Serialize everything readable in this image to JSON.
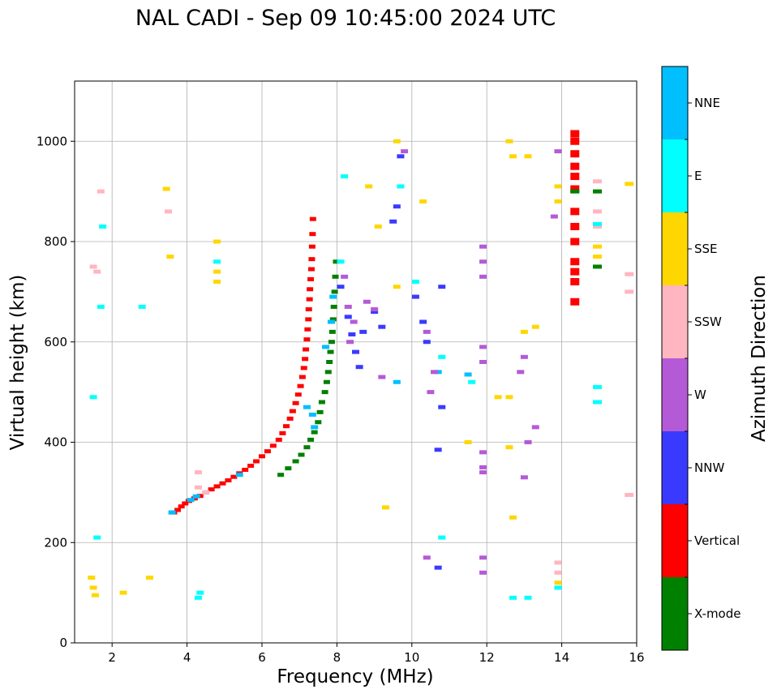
{
  "chart_data": {
    "type": "scatter",
    "title": "NAL CADI - Sep 09 10:45:00 2024 UTC",
    "xlabel": "Frequency (MHz)",
    "ylabel": "Virtual height (km)",
    "xlim": [
      1,
      16
    ],
    "ylim": [
      0,
      1120
    ],
    "xticks": [
      2,
      4,
      6,
      8,
      10,
      12,
      14,
      16
    ],
    "yticks": [
      0,
      200,
      400,
      600,
      800,
      1000
    ],
    "grid": true,
    "colorbar": {
      "label": "Azimuth Direction",
      "categories": [
        {
          "name": "X-mode",
          "color": "#008000"
        },
        {
          "name": "Vertical",
          "color": "#ff0000"
        },
        {
          "name": "NNW",
          "color": "#3a3aff"
        },
        {
          "name": "W",
          "color": "#b55ad6"
        },
        {
          "name": "SSW",
          "color": "#ffb6c1"
        },
        {
          "name": "SSE",
          "color": "#ffd700"
        },
        {
          "name": "E",
          "color": "#00ffff"
        },
        {
          "name": "NNE",
          "color": "#00bfff"
        }
      ]
    },
    "series": [
      {
        "name": "Vertical",
        "points": [
          [
            3.65,
            260
          ],
          [
            3.75,
            265
          ],
          [
            3.85,
            272
          ],
          [
            3.95,
            278
          ],
          [
            4.05,
            283
          ],
          [
            4.2,
            288
          ],
          [
            4.35,
            293
          ],
          [
            4.5,
            300
          ],
          [
            4.65,
            306
          ],
          [
            4.8,
            312
          ],
          [
            4.95,
            318
          ],
          [
            5.1,
            324
          ],
          [
            5.25,
            331
          ],
          [
            5.4,
            338
          ],
          [
            5.55,
            345
          ],
          [
            5.7,
            353
          ],
          [
            5.85,
            362
          ],
          [
            6.0,
            372
          ],
          [
            6.15,
            382
          ],
          [
            6.3,
            393
          ],
          [
            6.45,
            405
          ],
          [
            6.55,
            418
          ],
          [
            6.65,
            432
          ],
          [
            6.75,
            447
          ],
          [
            6.82,
            462
          ],
          [
            6.9,
            478
          ],
          [
            6.97,
            495
          ],
          [
            7.03,
            512
          ],
          [
            7.08,
            530
          ],
          [
            7.12,
            548
          ],
          [
            7.15,
            566
          ],
          [
            7.17,
            585
          ],
          [
            7.2,
            605
          ],
          [
            7.22,
            625
          ],
          [
            7.24,
            645
          ],
          [
            7.25,
            665
          ],
          [
            7.27,
            685
          ],
          [
            7.28,
            705
          ],
          [
            7.3,
            725
          ],
          [
            7.32,
            745
          ],
          [
            7.33,
            765
          ],
          [
            7.34,
            790
          ],
          [
            7.35,
            815
          ],
          [
            7.36,
            845
          ],
          [
            14.35,
            720
          ],
          [
            14.35,
            740
          ],
          [
            14.35,
            760
          ],
          [
            14.35,
            800
          ],
          [
            14.35,
            830
          ],
          [
            14.35,
            860
          ],
          [
            14.35,
            905
          ],
          [
            14.35,
            930
          ],
          [
            14.35,
            950
          ],
          [
            14.35,
            975
          ],
          [
            14.35,
            1000
          ],
          [
            14.35,
            1015
          ],
          [
            14.35,
            680
          ]
        ]
      },
      {
        "name": "X-mode",
        "points": [
          [
            6.5,
            335
          ],
          [
            6.7,
            348
          ],
          [
            6.9,
            362
          ],
          [
            7.05,
            375
          ],
          [
            7.2,
            390
          ],
          [
            7.3,
            405
          ],
          [
            7.4,
            420
          ],
          [
            7.5,
            440
          ],
          [
            7.55,
            460
          ],
          [
            7.6,
            480
          ],
          [
            7.68,
            500
          ],
          [
            7.73,
            520
          ],
          [
            7.77,
            540
          ],
          [
            7.8,
            560
          ],
          [
            7.83,
            580
          ],
          [
            7.86,
            600
          ],
          [
            7.88,
            620
          ],
          [
            7.9,
            645
          ],
          [
            7.92,
            670
          ],
          [
            7.94,
            700
          ],
          [
            7.96,
            730
          ],
          [
            7.98,
            760
          ],
          [
            14.95,
            750
          ],
          [
            14.95,
            900
          ],
          [
            14.35,
            900
          ]
        ]
      },
      {
        "name": "NNE",
        "points": [
          [
            3.6,
            260
          ],
          [
            4.1,
            285
          ],
          [
            4.25,
            292
          ],
          [
            5.4,
            335
          ],
          [
            7.2,
            470
          ],
          [
            7.35,
            455
          ],
          [
            7.4,
            430
          ],
          [
            7.7,
            590
          ],
          [
            7.85,
            640
          ],
          [
            7.9,
            690
          ],
          [
            9.6,
            520
          ],
          [
            10.7,
            540
          ],
          [
            11.5,
            535
          ]
        ]
      },
      {
        "name": "NNW",
        "points": [
          [
            8.1,
            710
          ],
          [
            8.3,
            650
          ],
          [
            8.4,
            615
          ],
          [
            8.5,
            580
          ],
          [
            8.6,
            550
          ],
          [
            8.7,
            620
          ],
          [
            9.0,
            660
          ],
          [
            9.2,
            630
          ],
          [
            9.5,
            840
          ],
          [
            9.6,
            870
          ],
          [
            9.7,
            970
          ],
          [
            10.1,
            690
          ],
          [
            10.3,
            640
          ],
          [
            10.4,
            600
          ],
          [
            10.7,
            150
          ],
          [
            10.7,
            385
          ],
          [
            10.8,
            470
          ],
          [
            10.8,
            710
          ]
        ]
      },
      {
        "name": "W",
        "points": [
          [
            8.2,
            730
          ],
          [
            8.3,
            670
          ],
          [
            8.35,
            600
          ],
          [
            8.45,
            640
          ],
          [
            8.8,
            680
          ],
          [
            9.0,
            665
          ],
          [
            9.2,
            530
          ],
          [
            9.8,
            980
          ],
          [
            10.4,
            620
          ],
          [
            10.5,
            500
          ],
          [
            10.4,
            170
          ],
          [
            10.6,
            540
          ],
          [
            11.9,
            170
          ],
          [
            11.9,
            140
          ],
          [
            11.9,
            730
          ],
          [
            11.9,
            760
          ],
          [
            11.9,
            790
          ],
          [
            11.9,
            380
          ],
          [
            11.9,
            340
          ],
          [
            11.9,
            350
          ],
          [
            11.9,
            590
          ],
          [
            11.9,
            560
          ],
          [
            12.9,
            540
          ],
          [
            13.0,
            330
          ],
          [
            13.0,
            570
          ],
          [
            13.1,
            400
          ],
          [
            13.3,
            430
          ],
          [
            13.9,
            980
          ],
          [
            13.8,
            850
          ]
        ]
      },
      {
        "name": "SSW",
        "points": [
          [
            1.5,
            750
          ],
          [
            1.6,
            740
          ],
          [
            1.7,
            900
          ],
          [
            3.5,
            860
          ],
          [
            4.3,
            340
          ],
          [
            4.3,
            310
          ],
          [
            4.5,
            300
          ],
          [
            13.9,
            140
          ],
          [
            13.9,
            160
          ],
          [
            14.95,
            920
          ],
          [
            14.95,
            860
          ],
          [
            14.95,
            830
          ],
          [
            15.8,
            735
          ],
          [
            15.8,
            700
          ],
          [
            15.8,
            295
          ]
        ]
      },
      {
        "name": "SSE",
        "points": [
          [
            1.45,
            130
          ],
          [
            1.5,
            110
          ],
          [
            1.55,
            95
          ],
          [
            2.3,
            100
          ],
          [
            3.0,
            130
          ],
          [
            3.45,
            905
          ],
          [
            3.55,
            770
          ],
          [
            4.8,
            800
          ],
          [
            4.8,
            720
          ],
          [
            4.8,
            740
          ],
          [
            8.85,
            910
          ],
          [
            9.1,
            830
          ],
          [
            9.3,
            270
          ],
          [
            9.6,
            710
          ],
          [
            9.6,
            1000
          ],
          [
            10.3,
            880
          ],
          [
            11.5,
            400
          ],
          [
            12.3,
            490
          ],
          [
            12.6,
            1000
          ],
          [
            12.7,
            970
          ],
          [
            12.6,
            390
          ],
          [
            12.6,
            490
          ],
          [
            12.7,
            250
          ],
          [
            13.1,
            970
          ],
          [
            13.0,
            620
          ],
          [
            13.3,
            630
          ],
          [
            13.9,
            910
          ],
          [
            13.9,
            880
          ],
          [
            13.9,
            120
          ],
          [
            14.95,
            790
          ],
          [
            14.95,
            770
          ],
          [
            15.8,
            915
          ]
        ]
      },
      {
        "name": "E",
        "points": [
          [
            1.6,
            210
          ],
          [
            1.7,
            670
          ],
          [
            1.75,
            830
          ],
          [
            1.5,
            490
          ],
          [
            2.8,
            670
          ],
          [
            4.3,
            90
          ],
          [
            4.35,
            100
          ],
          [
            4.8,
            760
          ],
          [
            8.1,
            760
          ],
          [
            8.2,
            930
          ],
          [
            9.7,
            910
          ],
          [
            10.1,
            720
          ],
          [
            10.8,
            570
          ],
          [
            10.8,
            210
          ],
          [
            11.6,
            520
          ],
          [
            12.7,
            90
          ],
          [
            13.1,
            90
          ],
          [
            13.9,
            110
          ],
          [
            14.95,
            480
          ],
          [
            14.95,
            510
          ],
          [
            14.95,
            835
          ]
        ]
      }
    ]
  }
}
